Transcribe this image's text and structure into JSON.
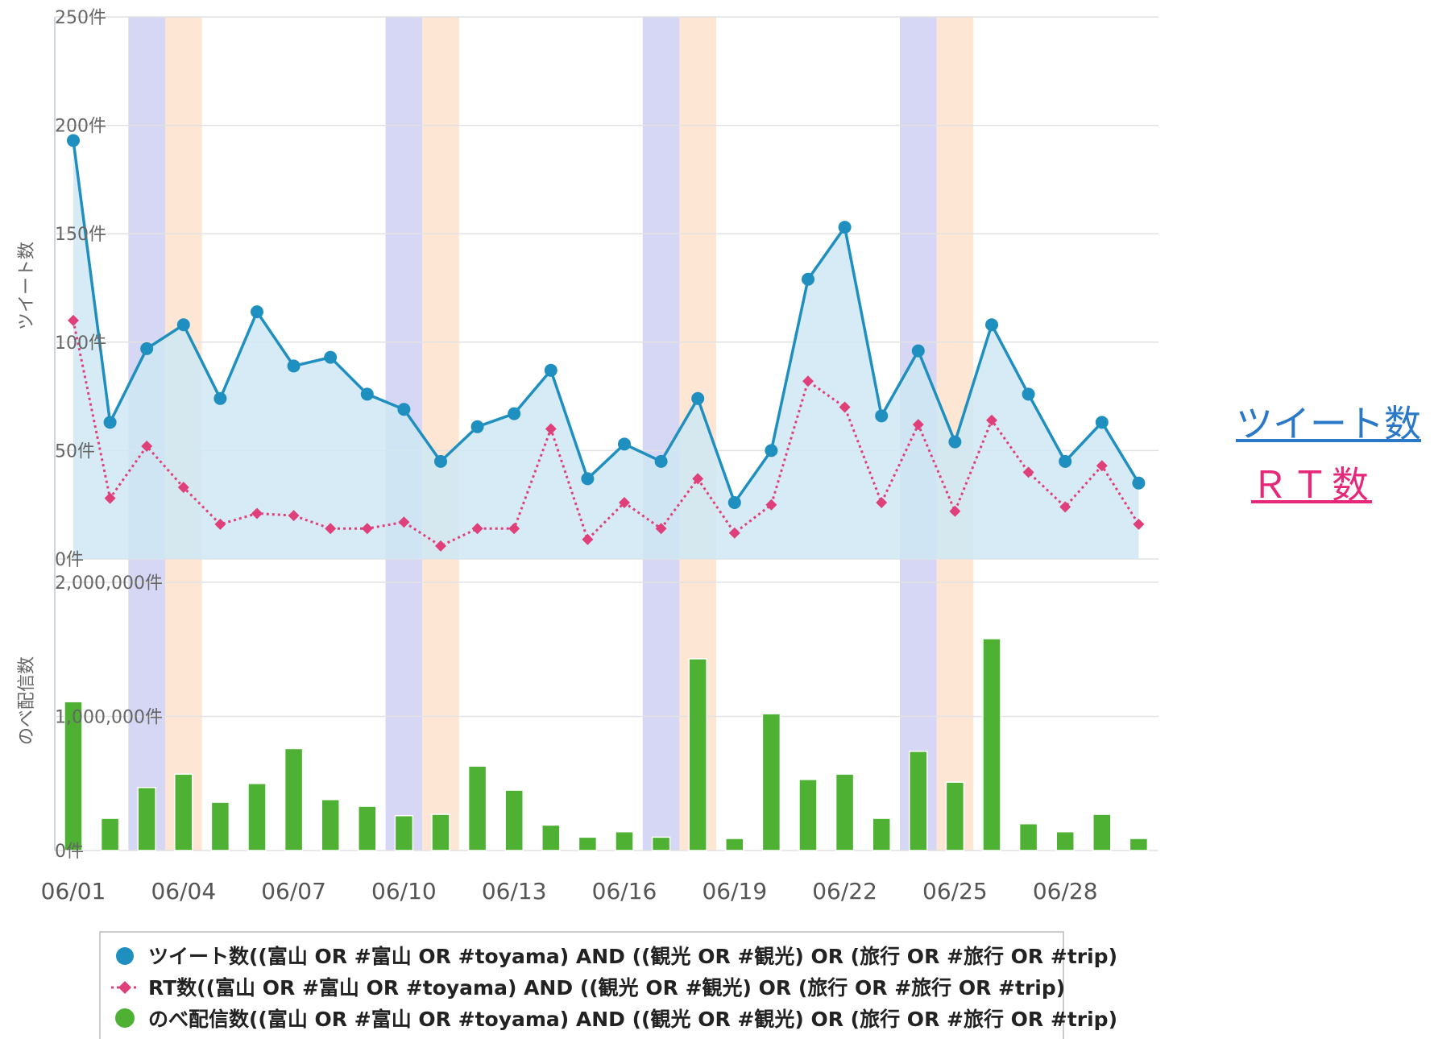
{
  "chart_data": {
    "type": "line+bar",
    "x": [
      "06/01",
      "06/02",
      "06/03",
      "06/04",
      "06/05",
      "06/06",
      "06/07",
      "06/08",
      "06/09",
      "06/10",
      "06/11",
      "06/12",
      "06/13",
      "06/14",
      "06/15",
      "06/16",
      "06/17",
      "06/18",
      "06/19",
      "06/20",
      "06/21",
      "06/22",
      "06/23",
      "06/24",
      "06/25",
      "06/26",
      "06/27",
      "06/28",
      "06/29",
      "06/30"
    ],
    "x_tick_labels": [
      "06/01",
      "06/04",
      "06/07",
      "06/10",
      "06/13",
      "06/16",
      "06/19",
      "06/22",
      "06/25",
      "06/28"
    ],
    "weekend_bands": [
      {
        "saturday": "06/03",
        "sunday": "06/04"
      },
      {
        "saturday": "06/10",
        "sunday": "06/11"
      },
      {
        "saturday": "06/17",
        "sunday": "06/18"
      },
      {
        "saturday": "06/24",
        "sunday": "06/25"
      }
    ],
    "top_panel": {
      "ylabel": "ツイート数",
      "ylim": [
        0,
        250
      ],
      "yticks": [
        "0件",
        "50件",
        "100件",
        "150件",
        "200件",
        "250件"
      ],
      "series": [
        {
          "name": "ツイート数((富山 OR #富山 OR #toyama) AND ((観光 OR #観光) OR (旅行 OR #旅行 OR #trip)",
          "style": "area-line",
          "color": "#1f8fc0",
          "values": [
            193,
            63,
            97,
            108,
            74,
            114,
            89,
            93,
            76,
            69,
            45,
            61,
            67,
            87,
            37,
            53,
            45,
            74,
            26,
            50,
            129,
            153,
            66,
            96,
            54,
            108,
            76,
            45,
            63,
            35
          ]
        },
        {
          "name": "RT数((富山 OR #富山 OR #toyama) AND ((観光 OR #観光) OR (旅行 OR #旅行 OR #trip)",
          "style": "dotted-line",
          "color": "#e0407a",
          "values": [
            110,
            28,
            52,
            33,
            16,
            21,
            20,
            14,
            14,
            17,
            6,
            14,
            14,
            60,
            9,
            26,
            14,
            37,
            12,
            25,
            82,
            70,
            26,
            62,
            22,
            64,
            40,
            24,
            43,
            16
          ]
        }
      ]
    },
    "bottom_panel": {
      "ylabel": "のべ配信数",
      "ylim": [
        0,
        2000000
      ],
      "yticks": [
        "0件",
        "1,000,000件",
        "2,000,000件"
      ],
      "series": [
        {
          "name": "のべ配信数((富山 OR #富山 OR #toyama) AND ((観光 OR #観光) OR (旅行 OR #旅行 OR #trip)",
          "style": "bar",
          "color": "#4eb134",
          "values": [
            1110000,
            240000,
            470000,
            570000,
            360000,
            500000,
            760000,
            380000,
            330000,
            260000,
            270000,
            630000,
            450000,
            190000,
            100000,
            140000,
            100000,
            1430000,
            90000,
            1020000,
            530000,
            570000,
            240000,
            740000,
            510000,
            1580000,
            200000,
            140000,
            270000,
            90000
          ]
        }
      ]
    },
    "legend_position": "bottom"
  },
  "side_links": {
    "tweets": "ツイート数",
    "rt": "ＲＴ数"
  },
  "colors": {
    "tweet_line": "#1f8fc0",
    "tweet_area": "#cfe7f3",
    "rt_line": "#e0407a",
    "bars": "#4eb134",
    "saturday_band": "#d6d6f5",
    "sunday_band": "#fde6d4",
    "link_tweets": "#2a78c8",
    "link_rt": "#e6287a"
  }
}
